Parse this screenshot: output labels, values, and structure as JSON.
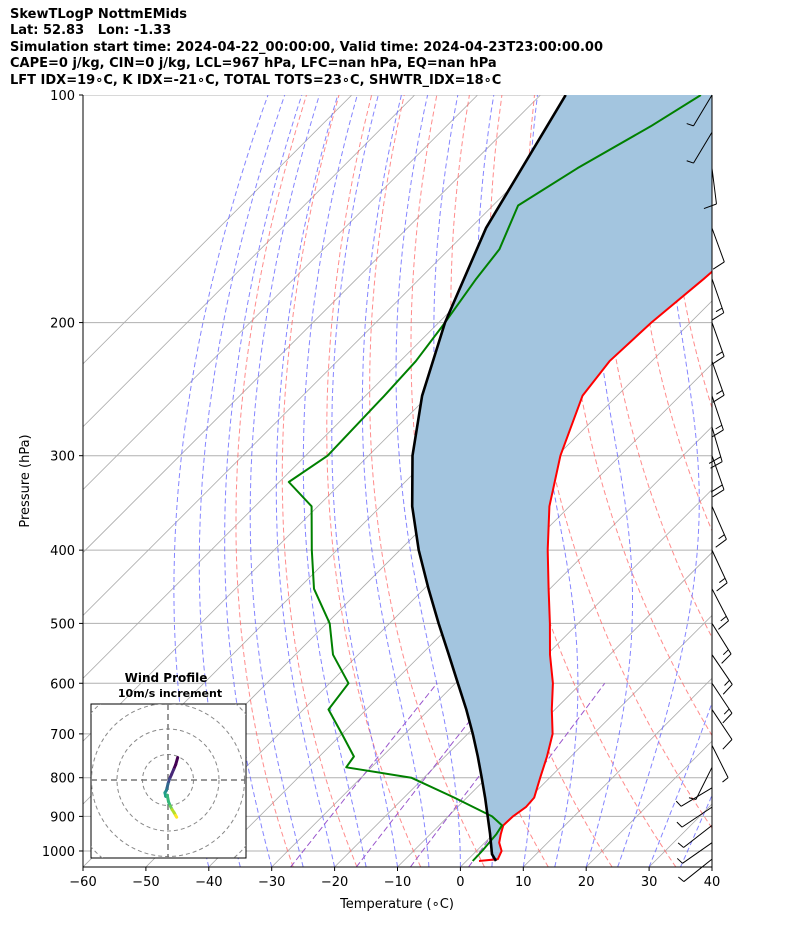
{
  "header": {
    "title": "SkewTLogP NottmEMids",
    "location": "Lat: 52.83   Lon: -1.33",
    "times": "Simulation start time: 2024-04-22_00:00:00, Valid time: 2024-04-23T23:00:00.00",
    "indices1": "CAPE=0 j/kg, CIN=0 j/kg, LCL=967 hPa, LFC=nan hPa, EQ=nan hPa",
    "indices2": "LFT IDX=19∘C, K IDX=-21∘C, TOTAL TOTS=23∘C, SHWTR_IDX=18∘C"
  },
  "colors": {
    "temperature": "#ff0000",
    "dewpoint": "#008000",
    "parcel": "#000000",
    "cape_fill": "#a3c5df",
    "dry_adiabat": "#ff6666",
    "moist_adiabat": "#6666ff",
    "mixing_ratio": "#9955cc",
    "isotherm": "#aaaaaa",
    "grid": "#b0b0b0"
  },
  "chart_data": {
    "type": "line",
    "xlabel": "Temperature (∘C)",
    "ylabel": "Pressure (hPa)",
    "xlim": [
      -60,
      40
    ],
    "ylim": [
      1050,
      100
    ],
    "log_y": true,
    "skew": true,
    "grid": true,
    "xticks": [
      "−60",
      "−50",
      "−40",
      "−30",
      "−20",
      "−10",
      "0",
      "10",
      "20",
      "30",
      "40"
    ],
    "yticks": [
      "100",
      "200",
      "300",
      "400",
      "500",
      "600",
      "700",
      "800",
      "900",
      "1000"
    ],
    "series": [
      {
        "key": "temperature",
        "points": [
          [
            1031,
            2.0
          ],
          [
            1025,
            4.7
          ],
          [
            1000,
            4.0
          ],
          [
            975,
            2.3
          ],
          [
            950,
            1.2
          ],
          [
            925,
            0.2
          ],
          [
            900,
            0.3
          ],
          [
            875,
            0.9
          ],
          [
            850,
            0.7
          ],
          [
            800,
            -1.5
          ],
          [
            750,
            -3.8
          ],
          [
            700,
            -6.5
          ],
          [
            650,
            -10.5
          ],
          [
            600,
            -14.5
          ],
          [
            550,
            -19.5
          ],
          [
            500,
            -24.5
          ],
          [
            450,
            -30.2
          ],
          [
            400,
            -36.5
          ],
          [
            350,
            -43.2
          ],
          [
            300,
            -49.5
          ],
          [
            250,
            -55.5
          ],
          [
            225,
            -56.7
          ],
          [
            200,
            -56.2
          ],
          [
            175,
            -54.8
          ],
          [
            150,
            -53.6
          ],
          [
            140,
            -55.0
          ],
          [
            125,
            -55.3
          ],
          [
            112,
            -53.7
          ],
          [
            100,
            -52.8
          ]
        ]
      },
      {
        "key": "dewpoint",
        "points": [
          [
            1031,
            1.0
          ],
          [
            1000,
            0.9
          ],
          [
            950,
            0.5
          ],
          [
            925,
            0.0
          ],
          [
            900,
            -3.0
          ],
          [
            850,
            -12.0
          ],
          [
            800,
            -22.0
          ],
          [
            775,
            -34.0
          ],
          [
            750,
            -34.5
          ],
          [
            700,
            -40.0
          ],
          [
            650,
            -46.0
          ],
          [
            600,
            -47.0
          ],
          [
            550,
            -54.0
          ],
          [
            500,
            -59.5
          ],
          [
            450,
            -67.5
          ],
          [
            400,
            -74.0
          ],
          [
            350,
            -81.0
          ],
          [
            325,
            -88.5
          ],
          [
            300,
            -86.5
          ],
          [
            250,
            -87.0
          ],
          [
            225,
            -87.5
          ],
          [
            200,
            -89.0
          ],
          [
            175,
            -91.0
          ],
          [
            160,
            -92.0
          ],
          [
            140,
            -96.0
          ],
          [
            125,
            -92.5
          ],
          [
            110,
            -87.5
          ],
          [
            100,
            -84.5
          ]
        ]
      },
      {
        "key": "parcel",
        "points": [
          [
            1031,
            4.7
          ],
          [
            1010,
            3.0
          ],
          [
            967,
            0.5
          ],
          [
            950,
            -0.5
          ],
          [
            900,
            -3.7
          ],
          [
            850,
            -7.1
          ],
          [
            800,
            -10.8
          ],
          [
            750,
            -14.8
          ],
          [
            700,
            -19.2
          ],
          [
            650,
            -24.1
          ],
          [
            600,
            -29.6
          ],
          [
            550,
            -35.6
          ],
          [
            500,
            -42.2
          ],
          [
            450,
            -49.3
          ],
          [
            400,
            -57.0
          ],
          [
            350,
            -65.0
          ],
          [
            300,
            -73.0
          ],
          [
            250,
            -81.0
          ],
          [
            200,
            -89.0
          ],
          [
            150,
            -97.5
          ],
          [
            100,
            -106.0
          ]
        ]
      }
    ]
  },
  "inset": {
    "title": "Wind Profile",
    "subtitle": "10m/s increment",
    "hodograph_points": [
      [
        3.8,
        8.8
      ],
      [
        3.0,
        6.0
      ],
      [
        2.2,
        4.1
      ],
      [
        1.4,
        2.2
      ],
      [
        0.6,
        0.4
      ],
      [
        0.0,
        -1.5
      ],
      [
        -0.4,
        -3.2
      ],
      [
        -0.6,
        -4.0
      ],
      [
        -1.2,
        -5.0
      ],
      [
        -0.9,
        -6.4
      ],
      [
        -0.3,
        -6.0
      ],
      [
        0.2,
        -8.5
      ],
      [
        0.9,
        -10.2
      ],
      [
        1.6,
        -11.6
      ],
      [
        2.4,
        -12.8
      ],
      [
        3.0,
        -13.9
      ],
      [
        3.4,
        -14.6
      ]
    ]
  },
  "wind_barbs": [
    {
      "p": 1025,
      "u": 5.0,
      "v": 4.0
    },
    {
      "p": 975,
      "u": 5.0,
      "v": 3.5
    },
    {
      "p": 925,
      "u": 4.5,
      "v": 3.5
    },
    {
      "p": 875,
      "u": 4.5,
      "v": 3.0
    },
    {
      "p": 825,
      "u": 2.5,
      "v": 1.5
    },
    {
      "p": 775,
      "u": 1.5,
      "v": 3.0
    },
    {
      "p": 725,
      "u": -3.0,
      "v": 6.0
    },
    {
      "p": 650,
      "u": -6.0,
      "v": 9.0
    },
    {
      "p": 600,
      "u": -7.0,
      "v": 10.5
    },
    {
      "p": 550,
      "u": -7.5,
      "v": 11.0
    },
    {
      "p": 500,
      "u": -7.5,
      "v": 12.0
    },
    {
      "p": 450,
      "u": -7.0,
      "v": 13.5
    },
    {
      "p": 400,
      "u": -6.5,
      "v": 14.0
    },
    {
      "p": 350,
      "u": -7.0,
      "v": 16.0
    },
    {
      "p": 300,
      "u": -6.0,
      "v": 17.0
    },
    {
      "p": 275,
      "u": -5.0,
      "v": 17.0
    },
    {
      "p": 250,
      "u": -5.0,
      "v": 15.0
    },
    {
      "p": 225,
      "u": -5.0,
      "v": 14.0
    },
    {
      "p": 200,
      "u": -5.0,
      "v": 14.0
    },
    {
      "p": 175,
      "u": -4.5,
      "v": 13.0
    },
    {
      "p": 150,
      "u": -4.0,
      "v": 11.0
    },
    {
      "p": 125,
      "u": -1.0,
      "v": 8.0
    },
    {
      "p": 112,
      "u": 3.0,
      "v": 5.0
    },
    {
      "p": 100,
      "u": 3.0,
      "v": 5.0
    }
  ]
}
